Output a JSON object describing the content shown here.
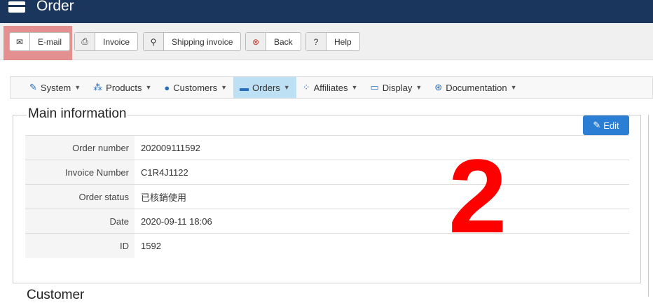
{
  "header": {
    "title": "Order",
    "icon": "credit-card-icon"
  },
  "toolbar": {
    "buttons": [
      {
        "label": "E-mail",
        "icon": "envelope-icon"
      },
      {
        "label": "Invoice",
        "icon": "print-icon"
      },
      {
        "label": "Shipping invoice",
        "icon": "map-marker-icon"
      },
      {
        "label": "Back",
        "icon": "times-circle-icon"
      },
      {
        "label": "Help",
        "icon": "question-circle-icon"
      }
    ]
  },
  "nav": {
    "items": [
      {
        "label": "System",
        "icon": "wrench-icon"
      },
      {
        "label": "Products",
        "icon": "cubes-icon"
      },
      {
        "label": "Customers",
        "icon": "user-icon"
      },
      {
        "label": "Orders",
        "icon": "credit-card-icon",
        "active": true
      },
      {
        "label": "Affiliates",
        "icon": "users-icon"
      },
      {
        "label": "Display",
        "icon": "monitor-icon"
      },
      {
        "label": "Documentation",
        "icon": "life-ring-icon"
      }
    ]
  },
  "main": {
    "legend": "Main information",
    "edit_label": "Edit",
    "rows": [
      {
        "label": "Order number",
        "value": "202009111592"
      },
      {
        "label": "Invoice Number",
        "value": "C1R4J1122"
      },
      {
        "label": "Order status",
        "value": "已核銷使用"
      },
      {
        "label": "Date",
        "value": "2020-09-11 18:06"
      },
      {
        "label": "ID",
        "value": "1592"
      }
    ]
  },
  "customer": {
    "legend": "Customer"
  },
  "annotation": {
    "label": "2",
    "color": "#ff0000"
  }
}
